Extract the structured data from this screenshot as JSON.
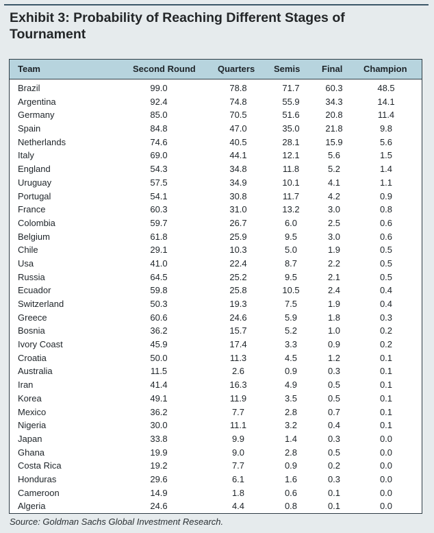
{
  "title": "Exhibit 3: Probability of Reaching Different Stages of Tournament",
  "columns": {
    "team": "Team",
    "second_round": "Second Round",
    "quarters": "Quarters",
    "semis": "Semis",
    "final": "Final",
    "champion": "Champion"
  },
  "rows": [
    [
      "Brazil",
      "99.0",
      "78.8",
      "71.7",
      "60.3",
      "48.5"
    ],
    [
      "Argentina",
      "92.4",
      "74.8",
      "55.9",
      "34.3",
      "14.1"
    ],
    [
      "Germany",
      "85.0",
      "70.5",
      "51.6",
      "20.8",
      "11.4"
    ],
    [
      "Spain",
      "84.8",
      "47.0",
      "35.0",
      "21.8",
      "9.8"
    ],
    [
      "Netherlands",
      "74.6",
      "40.5",
      "28.1",
      "15.9",
      "5.6"
    ],
    [
      "Italy",
      "69.0",
      "44.1",
      "12.1",
      "5.6",
      "1.5"
    ],
    [
      "England",
      "54.3",
      "34.8",
      "11.8",
      "5.2",
      "1.4"
    ],
    [
      "Uruguay",
      "57.5",
      "34.9",
      "10.1",
      "4.1",
      "1.1"
    ],
    [
      "Portugal",
      "54.1",
      "30.8",
      "11.7",
      "4.2",
      "0.9"
    ],
    [
      "France",
      "60.3",
      "31.0",
      "13.2",
      "3.0",
      "0.8"
    ],
    [
      "Colombia",
      "59.7",
      "26.7",
      "6.0",
      "2.5",
      "0.6"
    ],
    [
      "Belgium",
      "61.8",
      "25.9",
      "9.5",
      "3.0",
      "0.6"
    ],
    [
      "Chile",
      "29.1",
      "10.3",
      "5.0",
      "1.9",
      "0.5"
    ],
    [
      "Usa",
      "41.0",
      "22.4",
      "8.7",
      "2.2",
      "0.5"
    ],
    [
      "Russia",
      "64.5",
      "25.2",
      "9.5",
      "2.1",
      "0.5"
    ],
    [
      "Ecuador",
      "59.8",
      "25.8",
      "10.5",
      "2.4",
      "0.4"
    ],
    [
      "Switzerland",
      "50.3",
      "19.3",
      "7.5",
      "1.9",
      "0.4"
    ],
    [
      "Greece",
      "60.6",
      "24.6",
      "5.9",
      "1.8",
      "0.3"
    ],
    [
      "Bosnia",
      "36.2",
      "15.7",
      "5.2",
      "1.0",
      "0.2"
    ],
    [
      "Ivory Coast",
      "45.9",
      "17.4",
      "3.3",
      "0.9",
      "0.2"
    ],
    [
      "Croatia",
      "50.0",
      "11.3",
      "4.5",
      "1.2",
      "0.1"
    ],
    [
      "Australia",
      "11.5",
      "2.6",
      "0.9",
      "0.3",
      "0.1"
    ],
    [
      "Iran",
      "41.4",
      "16.3",
      "4.9",
      "0.5",
      "0.1"
    ],
    [
      "Korea",
      "49.1",
      "11.9",
      "3.5",
      "0.5",
      "0.1"
    ],
    [
      "Mexico",
      "36.2",
      "7.7",
      "2.8",
      "0.7",
      "0.1"
    ],
    [
      "Nigeria",
      "30.0",
      "11.1",
      "3.2",
      "0.4",
      "0.1"
    ],
    [
      "Japan",
      "33.8",
      "9.9",
      "1.4",
      "0.3",
      "0.0"
    ],
    [
      "Ghana",
      "19.9",
      "9.0",
      "2.8",
      "0.5",
      "0.0"
    ],
    [
      "Costa Rica",
      "19.2",
      "7.7",
      "0.9",
      "0.2",
      "0.0"
    ],
    [
      "Honduras",
      "29.6",
      "6.1",
      "1.6",
      "0.3",
      "0.0"
    ],
    [
      "Cameroon",
      "14.9",
      "1.8",
      "0.6",
      "0.1",
      "0.0"
    ],
    [
      "Algeria",
      "24.6",
      "4.4",
      "0.8",
      "0.1",
      "0.0"
    ]
  ],
  "source": "Source: Goldman Sachs Global Investment Research."
}
